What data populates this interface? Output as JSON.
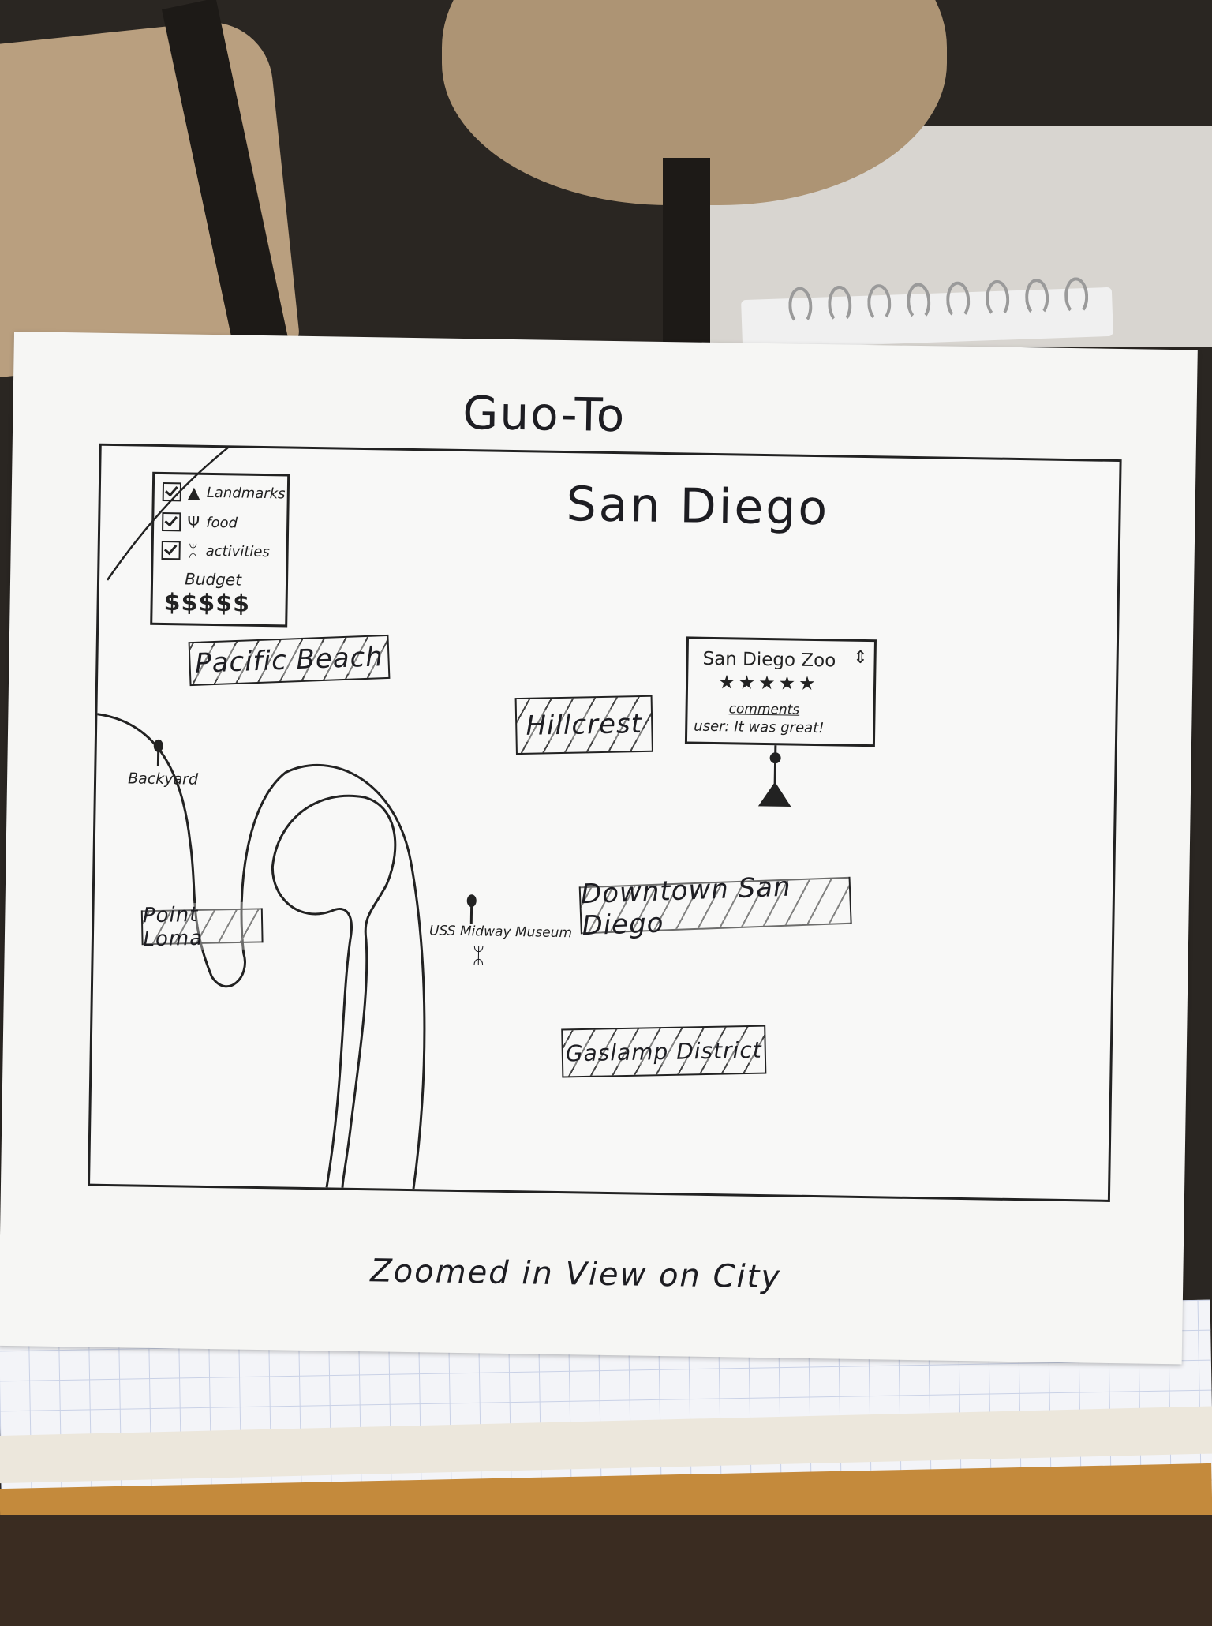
{
  "app": {
    "title": "Guo-To"
  },
  "map": {
    "city": "San Diego",
    "filters": [
      {
        "label": "Landmarks",
        "checked": true,
        "icon": "landmark-cone-icon",
        "glyph": "▲"
      },
      {
        "label": "food",
        "checked": true,
        "icon": "fork-icon",
        "glyph": "Ψ"
      },
      {
        "label": "activities",
        "checked": true,
        "icon": "person-running-icon",
        "glyph": "ᛯ"
      }
    ],
    "budget": {
      "label": "Budget",
      "value": "$$$$$"
    },
    "regions": [
      {
        "label": "Pacific Beach"
      },
      {
        "label": "Hillcrest"
      },
      {
        "label": "Point Loma"
      },
      {
        "label": "Downtown San Diego"
      },
      {
        "label": "Gaslamp District"
      }
    ],
    "places": [
      {
        "label": "Backyard",
        "icon": "map-pin-icon"
      },
      {
        "label": "USS Midway Museum",
        "icon": "map-pin-icon"
      }
    ],
    "popup": {
      "title": "San Diego Zoo",
      "stars": "★★★★★",
      "comments_label": "comments",
      "review": "user: It was great!",
      "scroll_glyph": "⇕"
    }
  },
  "caption": "Zoomed in View on City"
}
